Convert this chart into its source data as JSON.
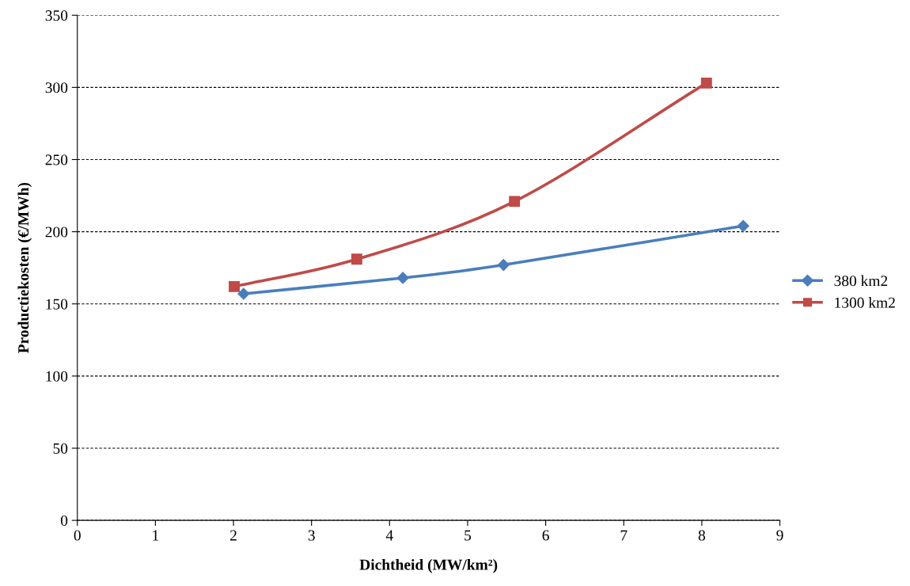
{
  "chart_data": {
    "type": "line",
    "xlabel": "Dichtheid (MW/km²)",
    "ylabel": "Productiekosten (€/MWh)",
    "xlim": [
      0,
      9
    ],
    "xticks": [
      0,
      1,
      2,
      3,
      4,
      5,
      6,
      7,
      8,
      9
    ],
    "ylim": [
      0,
      350
    ],
    "yticks": [
      0,
      50,
      100,
      150,
      200,
      250,
      300,
      350
    ],
    "grid": "y",
    "legend": "right",
    "line_style": "solid",
    "series": [
      {
        "name": "380 km2",
        "color": "#4a7ebb",
        "marker": "diamond",
        "x": [
          2.13,
          4.17,
          5.46,
          8.53
        ],
        "values": [
          157,
          168,
          177,
          204
        ]
      },
      {
        "name": "1300 km2",
        "color": "#be4b48",
        "marker": "square",
        "x": [
          2.01,
          3.58,
          5.6,
          8.06
        ],
        "values": [
          162,
          181,
          221,
          303
        ]
      }
    ]
  }
}
